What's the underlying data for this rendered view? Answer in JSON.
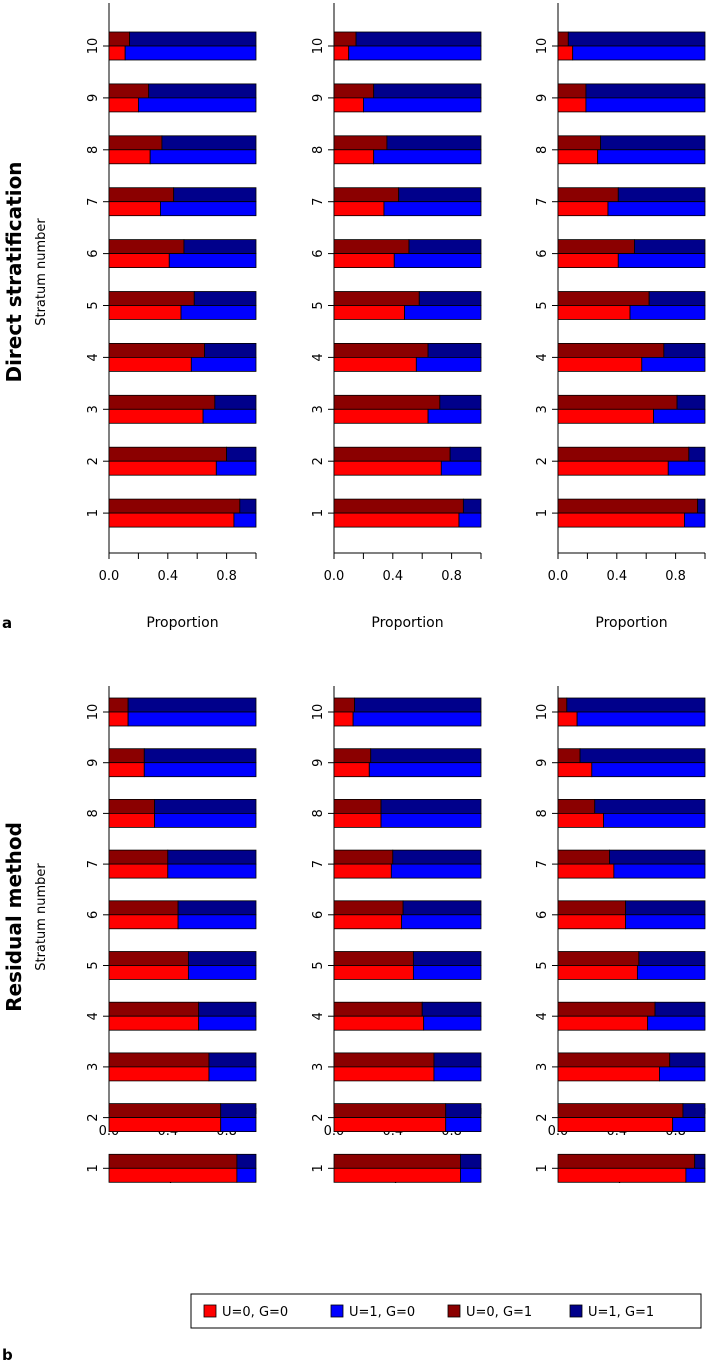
{
  "colors": {
    "u0g0": "#ff0000",
    "u1g0": "#0000ff",
    "u0g1": "#8b0000",
    "u1g1": "#00008b"
  },
  "legend": {
    "items": [
      {
        "label": "U=0, G=0",
        "color": "#ff0000"
      },
      {
        "label": "U=1, G=0",
        "color": "#0000ff"
      },
      {
        "label": "U=0, G=1",
        "color": "#8b0000"
      },
      {
        "label": "U=1, G=1",
        "color": "#00008b"
      }
    ]
  },
  "panels": [
    {
      "letter": "a",
      "title": "Direct stratification",
      "ylabel": "Stratum number"
    },
    {
      "letter": "b",
      "title": "Residual method",
      "ylabel": "Stratum number"
    }
  ],
  "chart_data": [
    {
      "type": "bar",
      "orientation": "horizontal",
      "panel": "a",
      "column": 1,
      "categories": [
        "1",
        "2",
        "3",
        "4",
        "5",
        "6",
        "7",
        "8",
        "9",
        "10"
      ],
      "xlabel": "Proportion",
      "ylabel": "Stratum number",
      "xticks": [
        "0.0",
        "0.4",
        "0.8"
      ],
      "xlim": [
        0,
        1
      ],
      "series": [
        {
          "name": "U=0, G=0",
          "values": [
            0.85,
            0.73,
            0.64,
            0.56,
            0.49,
            0.41,
            0.35,
            0.28,
            0.2,
            0.11
          ]
        },
        {
          "name": "U=0, G=1",
          "values": [
            0.89,
            0.8,
            0.72,
            0.65,
            0.58,
            0.51,
            0.44,
            0.36,
            0.27,
            0.14
          ]
        }
      ]
    },
    {
      "type": "bar",
      "orientation": "horizontal",
      "panel": "a",
      "column": 2,
      "categories": [
        "1",
        "2",
        "3",
        "4",
        "5",
        "6",
        "7",
        "8",
        "9",
        "10"
      ],
      "xlabel": "Proportion",
      "xticks": [
        "0.0",
        "0.4",
        "0.8"
      ],
      "xlim": [
        0,
        1
      ],
      "series": [
        {
          "name": "U=0, G=0",
          "values": [
            0.85,
            0.73,
            0.64,
            0.56,
            0.48,
            0.41,
            0.34,
            0.27,
            0.2,
            0.1
          ]
        },
        {
          "name": "U=0, G=1",
          "values": [
            0.88,
            0.79,
            0.72,
            0.64,
            0.58,
            0.51,
            0.44,
            0.36,
            0.27,
            0.15
          ]
        }
      ]
    },
    {
      "type": "bar",
      "orientation": "horizontal",
      "panel": "a",
      "column": 3,
      "categories": [
        "1",
        "2",
        "3",
        "4",
        "5",
        "6",
        "7",
        "8",
        "9",
        "10"
      ],
      "xlabel": "Proportion",
      "xticks": [
        "0.0",
        "0.4",
        "0.8"
      ],
      "xlim": [
        0,
        1
      ],
      "series": [
        {
          "name": "U=0, G=0",
          "values": [
            0.86,
            0.75,
            0.65,
            0.57,
            0.49,
            0.41,
            0.34,
            0.27,
            0.19,
            0.1
          ]
        },
        {
          "name": "U=0, G=1",
          "values": [
            0.95,
            0.89,
            0.81,
            0.72,
            0.62,
            0.52,
            0.41,
            0.29,
            0.19,
            0.07
          ]
        }
      ]
    },
    {
      "type": "bar",
      "orientation": "horizontal",
      "panel": "b",
      "column": 1,
      "categories": [
        "1",
        "2",
        "3",
        "4",
        "5",
        "6",
        "7",
        "8",
        "9",
        "10"
      ],
      "xlabel": "Proportion",
      "ylabel": "Stratum number",
      "xticks": [
        "0.0",
        "0.4",
        "0.8"
      ],
      "xlim": [
        0,
        1
      ],
      "series": [
        {
          "name": "U=0, G=0",
          "values": [
            0.87,
            0.76,
            0.68,
            0.61,
            0.54,
            0.47,
            0.4,
            0.31,
            0.24,
            0.13
          ]
        },
        {
          "name": "U=0, G=1",
          "values": [
            0.87,
            0.76,
            0.68,
            0.61,
            0.54,
            0.47,
            0.4,
            0.31,
            0.24,
            0.13
          ]
        }
      ]
    },
    {
      "type": "bar",
      "orientation": "horizontal",
      "panel": "b",
      "column": 2,
      "categories": [
        "1",
        "2",
        "3",
        "4",
        "5",
        "6",
        "7",
        "8",
        "9",
        "10"
      ],
      "xlabel": "Proportion",
      "xticks": [
        "0.0",
        "0.4",
        "0.8"
      ],
      "xlim": [
        0,
        1
      ],
      "series": [
        {
          "name": "U=0, G=0",
          "values": [
            0.86,
            0.76,
            0.68,
            0.61,
            0.54,
            0.46,
            0.39,
            0.32,
            0.24,
            0.13
          ]
        },
        {
          "name": "U=0, G=1",
          "values": [
            0.86,
            0.76,
            0.68,
            0.6,
            0.54,
            0.47,
            0.4,
            0.32,
            0.25,
            0.14
          ]
        }
      ]
    },
    {
      "type": "bar",
      "orientation": "horizontal",
      "panel": "b",
      "column": 3,
      "categories": [
        "1",
        "2",
        "3",
        "4",
        "5",
        "6",
        "7",
        "8",
        "9",
        "10"
      ],
      "xlabel": "Proportion",
      "xticks": [
        "0.0",
        "0.4",
        "0.8"
      ],
      "xlim": [
        0,
        1
      ],
      "series": [
        {
          "name": "U=0, G=0",
          "values": [
            0.87,
            0.78,
            0.69,
            0.61,
            0.54,
            0.46,
            0.38,
            0.31,
            0.23,
            0.13
          ]
        },
        {
          "name": "U=0, G=1",
          "values": [
            0.93,
            0.85,
            0.76,
            0.66,
            0.55,
            0.46,
            0.35,
            0.25,
            0.15,
            0.06
          ]
        }
      ]
    }
  ]
}
